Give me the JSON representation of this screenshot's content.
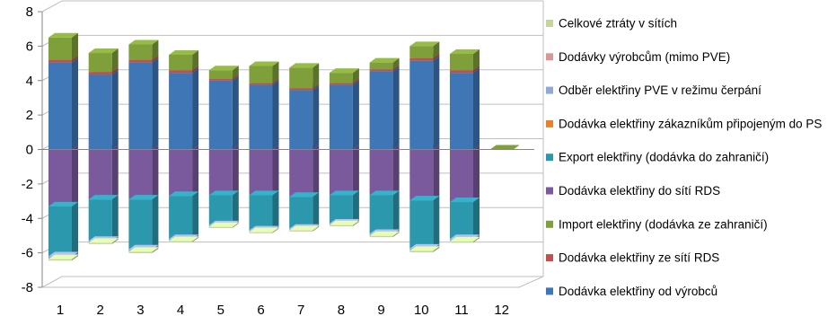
{
  "chart_data": {
    "type": "bar",
    "subtype": "stacked-3d",
    "categories": [
      "1",
      "2",
      "3",
      "4",
      "5",
      "6",
      "7",
      "8",
      "9",
      "10",
      "11",
      "12"
    ],
    "ylim": [
      -8,
      8
    ],
    "yticks": [
      -8,
      -6,
      -4,
      -2,
      0,
      2,
      4,
      6,
      8
    ],
    "ytick_labels": [
      "-8",
      "-6",
      "-4",
      "-2",
      "0",
      "2",
      "4",
      "6",
      "8"
    ],
    "grid": true,
    "legend_position": "right",
    "title": "",
    "xlabel": "",
    "ylabel": "",
    "series": [
      {
        "name": "Dodávka elektřiny od výrobců",
        "color": "#3F76B6",
        "values": [
          5.05,
          4.35,
          5.05,
          4.45,
          4.0,
          3.75,
          3.45,
          3.75,
          4.55,
          5.15,
          4.45,
          0
        ]
      },
      {
        "name": "Dodávka elektřiny ze sítí RDS",
        "color": "#C0504D",
        "values": [
          0.15,
          0.15,
          0.15,
          0.15,
          0.1,
          0.1,
          0.1,
          0.1,
          0.1,
          0.15,
          0.15,
          0
        ]
      },
      {
        "name": "Import elektřiny (dodávka ze zahraničí)",
        "color": "#7E9F3A",
        "values": [
          1.3,
          1.1,
          0.9,
          0.9,
          0.5,
          1.0,
          1.2,
          0.6,
          0.4,
          0.7,
          0.95,
          0
        ]
      },
      {
        "name": "Dodávka elektřiny do sítí RDS",
        "color": "#7A5A9C",
        "values": [
          -3.3,
          -2.9,
          -2.9,
          -2.7,
          -2.65,
          -2.65,
          -2.75,
          -2.65,
          -2.65,
          -2.95,
          -3.05,
          0
        ]
      },
      {
        "name": "Export elektřiny (dodávka do zahraničí)",
        "color": "#2C98AE",
        "values": [
          -2.9,
          -2.4,
          -2.9,
          -2.5,
          -1.75,
          -2.05,
          -1.85,
          -1.65,
          -2.25,
          -2.8,
          -2.15,
          0
        ]
      },
      {
        "name": "Dodávka elektřiny zákazníkům připojeným do PS",
        "color": "#E8812A",
        "values": [
          0,
          0,
          0,
          0,
          0,
          0,
          0,
          0,
          0,
          0,
          0,
          0
        ]
      },
      {
        "name": "Odběr elektřiny PVE v režimu čerpání",
        "color": "#8FA8D4",
        "values": [
          -0.15,
          -0.1,
          -0.12,
          -0.1,
          -0.08,
          -0.08,
          -0.08,
          -0.08,
          -0.1,
          -0.12,
          -0.12,
          0
        ]
      },
      {
        "name": "Dodávky výrobcům (mimo PVE)",
        "color": "#D99694",
        "values": [
          -0.02,
          -0.02,
          -0.02,
          -0.02,
          -0.02,
          -0.02,
          -0.02,
          -0.02,
          -0.02,
          -0.02,
          -0.02,
          0
        ]
      },
      {
        "name": "Celkové ztráty v sítích",
        "color": "#C3D69B",
        "values": [
          -0.08,
          -0.07,
          -0.08,
          -0.07,
          -0.06,
          -0.06,
          -0.06,
          -0.06,
          -0.07,
          -0.08,
          -0.07,
          0
        ]
      }
    ],
    "legend_order": [
      8,
      7,
      6,
      5,
      4,
      3,
      2,
      1,
      0
    ]
  }
}
